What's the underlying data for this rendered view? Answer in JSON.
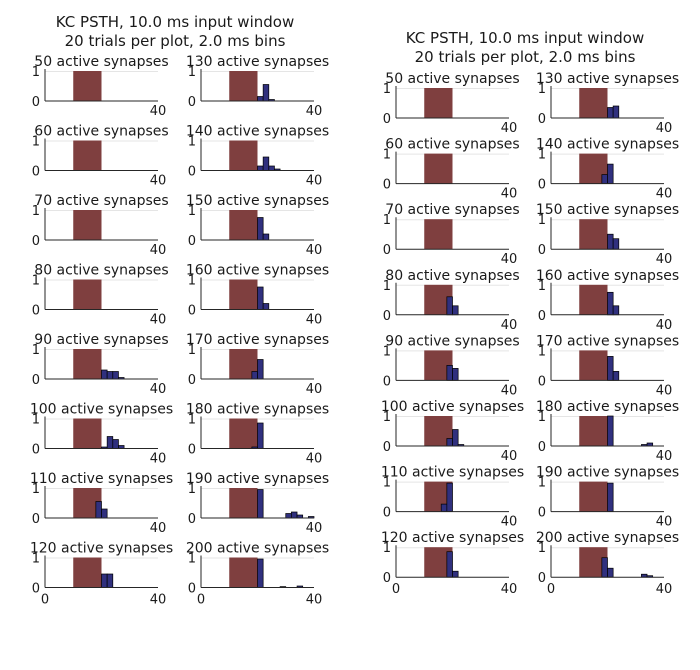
{
  "colors": {
    "stimulus": "#7f3f3f",
    "bar": "#30307e",
    "bar_edge": "#000000",
    "grid": "#e5e5e5",
    "axis": "#262626"
  },
  "figure": {
    "background": "#ffffff"
  },
  "chart_data": [
    {
      "type": "bar",
      "title": [
        "KC PSTH,  10.0 ms input window",
        "20 trials per plot, 2.0 ms bins"
      ],
      "xlim": [
        0,
        40
      ],
      "ylim": [
        0,
        1
      ],
      "xticks": [
        "0",
        "40"
      ],
      "yticks": [
        "0",
        "1"
      ],
      "bin_width": 2,
      "stimulus_window": [
        10,
        20
      ],
      "grid": "horizontal",
      "panels": [
        {
          "title": "50 active synapses",
          "bins": []
        },
        {
          "title": "130 active synapses",
          "bins": [
            [
              20,
              0.15
            ],
            [
              22,
              0.55
            ],
            [
              24,
              0.05
            ]
          ]
        },
        {
          "title": "60 active synapses",
          "bins": []
        },
        {
          "title": "140 active synapses",
          "bins": [
            [
              20,
              0.15
            ],
            [
              22,
              0.45
            ],
            [
              24,
              0.15
            ],
            [
              26,
              0.05
            ]
          ]
        },
        {
          "title": "70 active synapses",
          "bins": []
        },
        {
          "title": "150 active synapses",
          "bins": [
            [
              20,
              0.75
            ],
            [
              22,
              0.2
            ]
          ]
        },
        {
          "title": "80 active synapses",
          "bins": []
        },
        {
          "title": "160 active synapses",
          "bins": [
            [
              20,
              0.75
            ],
            [
              22,
              0.2
            ]
          ]
        },
        {
          "title": "90 active synapses",
          "bins": [
            [
              20,
              0.3
            ],
            [
              22,
              0.25
            ],
            [
              24,
              0.25
            ],
            [
              26,
              0.05
            ]
          ]
        },
        {
          "title": "170 active synapses",
          "bins": [
            [
              18,
              0.25
            ],
            [
              20,
              0.65
            ]
          ]
        },
        {
          "title": "100 active synapses",
          "bins": [
            [
              20,
              0.05
            ],
            [
              22,
              0.4
            ],
            [
              24,
              0.3
            ],
            [
              26,
              0.1
            ]
          ]
        },
        {
          "title": "180 active synapses",
          "bins": [
            [
              18,
              0.05
            ],
            [
              20,
              0.85
            ]
          ]
        },
        {
          "title": "110 active synapses",
          "bins": [
            [
              18,
              0.55
            ],
            [
              20,
              0.3
            ]
          ]
        },
        {
          "title": "190 active synapses",
          "bins": [
            [
              20,
              0.95
            ],
            [
              30,
              0.15
            ],
            [
              32,
              0.2
            ],
            [
              34,
              0.1
            ],
            [
              38,
              0.05
            ]
          ]
        },
        {
          "title": "120 active synapses",
          "bins": [
            [
              20,
              0.45
            ],
            [
              22,
              0.45
            ]
          ]
        },
        {
          "title": "200 active synapses",
          "bins": [
            [
              20,
              0.95
            ],
            [
              28,
              0.03
            ],
            [
              34,
              0.05
            ]
          ]
        }
      ]
    },
    {
      "type": "bar",
      "title": [
        "KC PSTH,  10.0 ms input window",
        "20 trials per plot, 2.0 ms bins"
      ],
      "xlim": [
        0,
        40
      ],
      "ylim": [
        0,
        1
      ],
      "xticks": [
        "0",
        "40"
      ],
      "yticks": [
        "0",
        "1"
      ],
      "bin_width": 2,
      "stimulus_window": [
        10,
        20
      ],
      "grid": "horizontal",
      "panels": [
        {
          "title": "50 active synapses",
          "bins": []
        },
        {
          "title": "130 active synapses",
          "bins": [
            [
              20,
              0.35
            ],
            [
              22,
              0.4
            ]
          ]
        },
        {
          "title": "60 active synapses",
          "bins": []
        },
        {
          "title": "140 active synapses",
          "bins": [
            [
              18,
              0.3
            ],
            [
              20,
              0.65
            ]
          ]
        },
        {
          "title": "70 active synapses",
          "bins": []
        },
        {
          "title": "150 active synapses",
          "bins": [
            [
              20,
              0.5
            ],
            [
              22,
              0.35
            ]
          ]
        },
        {
          "title": "80 active synapses",
          "bins": [
            [
              18,
              0.6
            ],
            [
              20,
              0.3
            ]
          ]
        },
        {
          "title": "160 active synapses",
          "bins": [
            [
              20,
              0.75
            ],
            [
              22,
              0.3
            ]
          ]
        },
        {
          "title": "90 active synapses",
          "bins": [
            [
              18,
              0.5
            ],
            [
              20,
              0.4
            ]
          ]
        },
        {
          "title": "170 active synapses",
          "bins": [
            [
              20,
              0.8
            ],
            [
              22,
              0.3
            ]
          ]
        },
        {
          "title": "100 active synapses",
          "bins": [
            [
              18,
              0.25
            ],
            [
              20,
              0.55
            ],
            [
              22,
              0.05
            ]
          ]
        },
        {
          "title": "180 active synapses",
          "bins": [
            [
              20,
              1.0
            ],
            [
              32,
              0.05
            ],
            [
              34,
              0.1
            ]
          ]
        },
        {
          "title": "110 active synapses",
          "bins": [
            [
              16,
              0.25
            ],
            [
              18,
              0.95
            ]
          ]
        },
        {
          "title": "190 active synapses",
          "bins": [
            [
              20,
              0.95
            ]
          ]
        },
        {
          "title": "120 active synapses",
          "bins": [
            [
              18,
              0.85
            ],
            [
              20,
              0.2
            ]
          ]
        },
        {
          "title": "200 active synapses",
          "bins": [
            [
              18,
              0.65
            ],
            [
              20,
              0.3
            ],
            [
              32,
              0.1
            ],
            [
              34,
              0.05
            ]
          ]
        }
      ]
    }
  ]
}
